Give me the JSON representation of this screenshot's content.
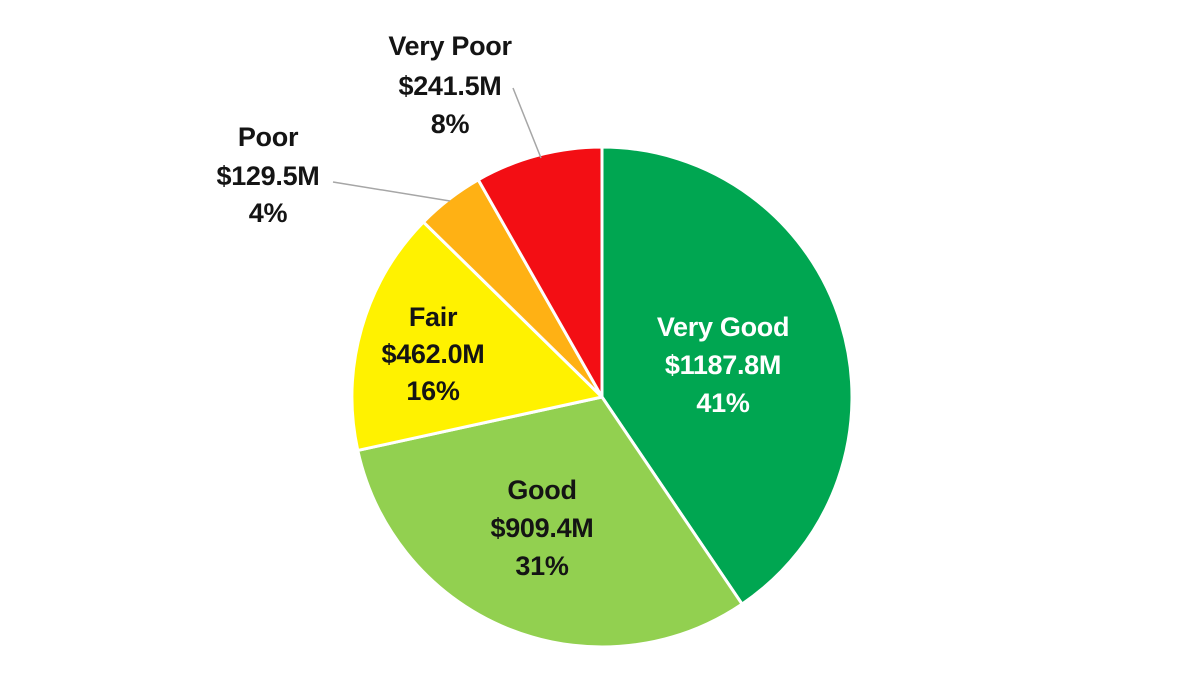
{
  "chart_data": {
    "type": "pie",
    "title": "",
    "start_angle": "top",
    "direction": "clockwise",
    "legend": "none",
    "background": "#FFFFFF",
    "leader_line_color": "#A6A6A6",
    "slices": [
      {
        "label": "Very Good",
        "value": 1187.8,
        "value_label": "$1187.8M",
        "pct": 41,
        "pct_label": "41%",
        "color": "#00A651",
        "text_color": "#FFFFFF",
        "label_placement": "inside"
      },
      {
        "label": "Good",
        "value": 909.4,
        "value_label": "$909.4M",
        "pct": 31,
        "pct_label": "31%",
        "color": "#92D050",
        "text_color": "#141414",
        "label_placement": "inside"
      },
      {
        "label": "Fair",
        "value": 462.0,
        "value_label": "$462.0M",
        "pct": 16,
        "pct_label": "16%",
        "color": "#FFF200",
        "text_color": "#141414",
        "label_placement": "inside"
      },
      {
        "label": "Poor",
        "value": 129.5,
        "value_label": "$129.5M",
        "pct": 4,
        "pct_label": "4%",
        "color": "#FFB114",
        "text_color": "#141414",
        "label_placement": "outside"
      },
      {
        "label": "Very Poor",
        "value": 241.5,
        "value_label": "$241.5M",
        "pct": 8,
        "pct_label": "8%",
        "color": "#F30E14",
        "text_color": "#141414",
        "label_placement": "outside"
      }
    ]
  }
}
